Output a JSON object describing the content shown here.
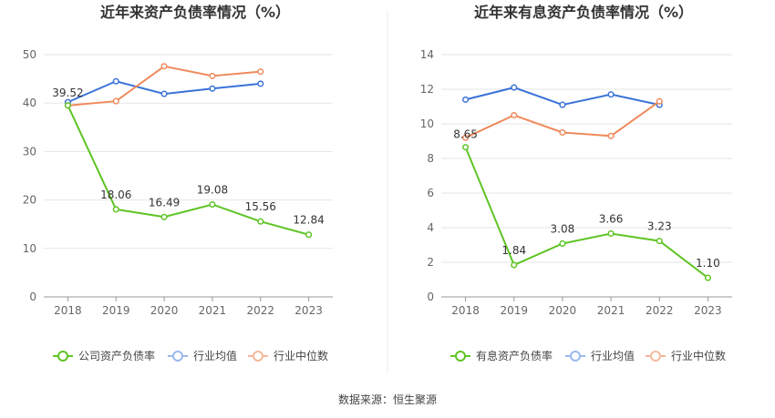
{
  "source_label": "数据来源：恒生聚源",
  "colors": {
    "company": "#5ec424",
    "industry_avg": "#3a72d8",
    "industry_median": "#ef8a5c",
    "grid": "#e6e6e6",
    "axis": "#999999"
  },
  "chart_data": [
    {
      "type": "line",
      "title": "近年来资产负债率情况（%）",
      "categories": [
        "2018",
        "2019",
        "2020",
        "2021",
        "2022",
        "2023"
      ],
      "ylim": [
        0,
        50
      ],
      "yticks": [
        0,
        10,
        20,
        30,
        40,
        50
      ],
      "grid": true,
      "legend_position": "bottom",
      "series": [
        {
          "name": "公司资产负债率",
          "key": "company",
          "values": [
            39.52,
            18.06,
            16.49,
            19.08,
            15.56,
            12.84
          ],
          "labels": [
            "39.52",
            "18.06",
            "16.49",
            "19.08",
            "15.56",
            "12.84"
          ]
        },
        {
          "name": "行业均值",
          "key": "industry_avg",
          "values": [
            40.2,
            44.5,
            41.9,
            43.0,
            44.0,
            null
          ]
        },
        {
          "name": "行业中位数",
          "key": "industry_median",
          "values": [
            39.5,
            40.4,
            47.6,
            45.6,
            46.5,
            null
          ]
        }
      ]
    },
    {
      "type": "line",
      "title": "近年来有息资产负债率情况（%）",
      "categories": [
        "2018",
        "2019",
        "2020",
        "2021",
        "2022",
        "2023"
      ],
      "ylim": [
        0,
        14
      ],
      "yticks": [
        0,
        2,
        4,
        6,
        8,
        10,
        12,
        14
      ],
      "grid": true,
      "legend_position": "bottom",
      "series": [
        {
          "name": "有息资产负债率",
          "key": "company",
          "values": [
            8.65,
            1.84,
            3.08,
            3.66,
            3.23,
            1.1
          ],
          "labels": [
            "8.65",
            "1.84",
            "3.08",
            "3.66",
            "3.23",
            "1.10"
          ]
        },
        {
          "name": "行业均值",
          "key": "industry_avg",
          "values": [
            11.4,
            12.1,
            11.1,
            11.7,
            11.1,
            null
          ]
        },
        {
          "name": "行业中位数",
          "key": "industry_median",
          "values": [
            9.2,
            10.5,
            9.5,
            9.3,
            11.3,
            null
          ]
        }
      ]
    }
  ]
}
